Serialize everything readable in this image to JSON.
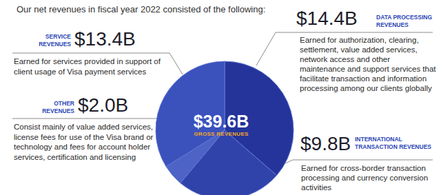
{
  "chart_data": {
    "type": "pie",
    "title": "Our net revenues in fiscal year 2022 consisted of the following:",
    "categories": [
      "DATA PROCESSING REVENUES",
      "INTERNATIONAL TRANSACTION REVENUES",
      "OTHER REVENUES",
      "SERVICE REVENUES"
    ],
    "values": [
      14.4,
      9.8,
      2.0,
      13.4
    ],
    "value_labels": [
      "$14.4B",
      "$9.8B",
      "$2.0B",
      "$13.4B"
    ],
    "colors": [
      "#24349a",
      "#2f43aa",
      "#4d63c6",
      "#3b52bd"
    ],
    "descriptions": [
      "Earned for authorization, clearing, settlement, value added services, network access and other maintenance and support services that facilitate transaction and information processing among our clients globally",
      "Earned for cross-border transaction processing and currency conversion activities",
      "Consist mainly of value added services, license fees for use of the Visa brand or technology and fees for account holder services, certification and licensing",
      "Earned for services provided in support of client usage of Visa payment services"
    ],
    "center_value_label": "$39.6B",
    "center_label": "GROSS REVENUES"
  }
}
